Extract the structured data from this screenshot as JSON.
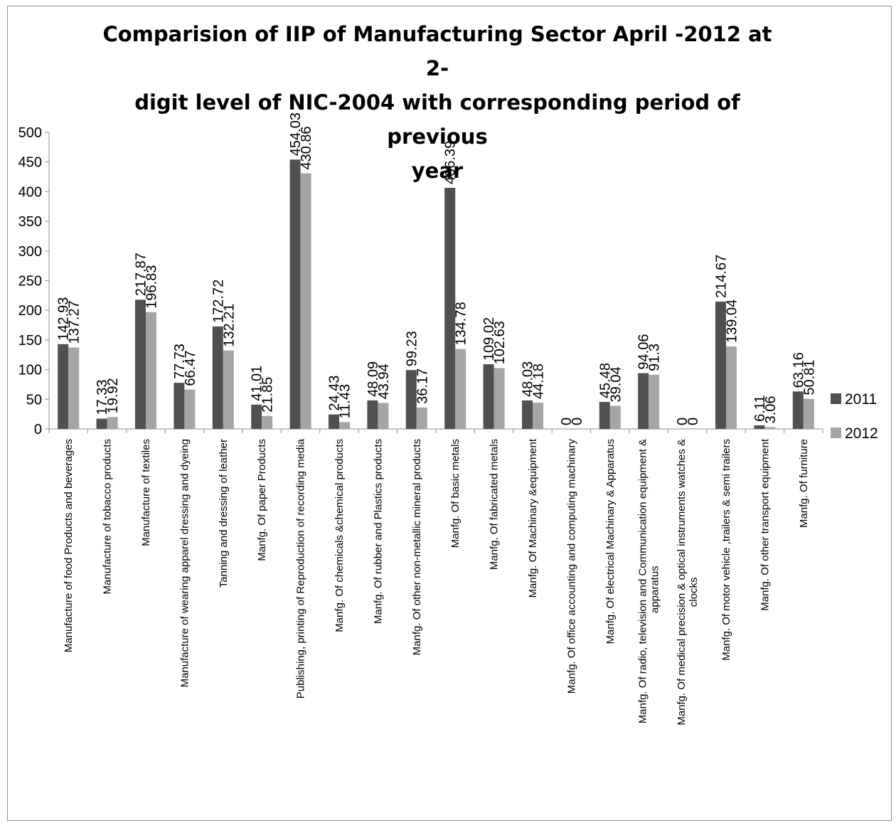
{
  "chart_data": {
    "type": "bar",
    "title": "Comparision of IIP of Manufacturing Sector April -2012 at 2-digit level of NIC-2004 with corresponding period of previous year",
    "xlabel": "",
    "ylabel": "",
    "ylim": [
      0,
      500
    ],
    "yticks": [
      0,
      50,
      100,
      150,
      200,
      250,
      300,
      350,
      400,
      450,
      500
    ],
    "grid": false,
    "legend_position": "right",
    "categories": [
      "Manufacture of food Products and beverages",
      "Manufacture of tobacco  products",
      "Manufacture of textiles",
      "Manufacture of wearing apparel dressing and dyeing",
      "Tanning and dressing of leather",
      "Manfg. Of paper Products",
      "Publishing, printing of Reproduction of recording media",
      "Manfg. Of chemicals &chemical products",
      "Manfg. Of rubber and Plastics products",
      "Manfg. Of other non-metallic mineral products",
      "Manfg. Of basic metals",
      "Manfg. Of fabricated metals",
      "Manfg. Of Machinary &equipment",
      "Manfg. Of office accounting and computing machinary",
      "Manfg. Of electrical Machinary & Apparatus",
      "Manfg. Of radio, television and Communication equipment  & apparatus",
      "Manfg. Of medical precision & optical instruments watches & clocks",
      "Manfg. Of motor vehicle ,trailers & semi trailers",
      "Manfg. Of other transport equipment",
      "Manfg. Of furniture"
    ],
    "series": [
      {
        "name": "2011",
        "color": "#505050",
        "values": [
          142.93,
          17.33,
          217.87,
          77.73,
          172.72,
          41.01,
          454.03,
          24.43,
          48.09,
          99.23,
          406.39,
          109.02,
          48.03,
          0,
          45.48,
          94.06,
          0,
          214.67,
          6.11,
          63.16
        ],
        "labels": [
          "142.93",
          "17.33",
          "217.87",
          "77.73",
          "172.72",
          "41.01",
          "454.03",
          "24.43",
          "48.09",
          "99.23",
          "406.39",
          "109.02",
          "48.03",
          "0",
          "45.48",
          "94.06",
          "0",
          "214.67",
          "6.11",
          "63.16"
        ]
      },
      {
        "name": "2012",
        "color": "#a5a5a5",
        "values": [
          137.27,
          19.92,
          196.83,
          66.47,
          132.21,
          21.85,
          430.86,
          11.43,
          43.94,
          36.17,
          134.78,
          102.63,
          44.18,
          0,
          39.04,
          91.3,
          0,
          139.04,
          3.06,
          50.81
        ],
        "labels": [
          "137.27",
          "19.92",
          "196.83",
          "66.47",
          "132.21",
          "21.85",
          "430.86",
          "11.43",
          "43.94",
          "36.17",
          "134.78",
          "102.63",
          "44.18",
          "0",
          "39.04",
          "91.3",
          "0",
          "139.04",
          "3.06",
          "50.81"
        ]
      }
    ]
  }
}
